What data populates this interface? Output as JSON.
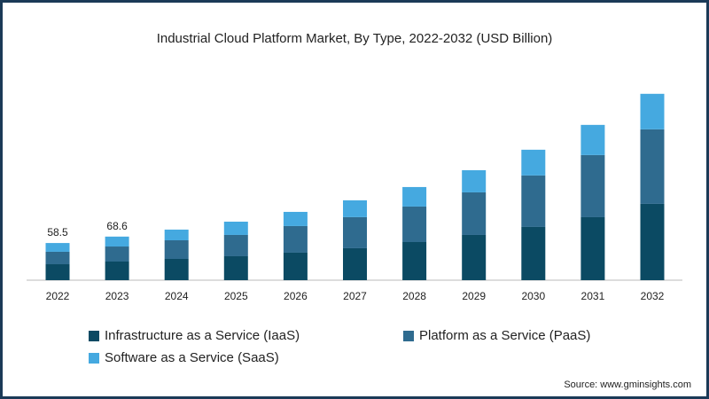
{
  "chart_data": {
    "type": "stacked_bar",
    "title": "Industrial Cloud Platform Market, By Type, 2022-2032 (USD Billion)",
    "categories": [
      "2022",
      "2023",
      "2024",
      "2025",
      "2026",
      "2027",
      "2028",
      "2029",
      "2030",
      "2031",
      "2032"
    ],
    "series": [
      {
        "name": "Infrastructure as a Service (IaaS)",
        "color": "#0b4a63",
        "values": [
          25.1,
          29.3,
          33.5,
          37.7,
          43.3,
          50.3,
          60.0,
          71.2,
          83.8,
          99.1,
          120.1
        ]
      },
      {
        "name": "Platform as a Service (PaaS)",
        "color": "#2f6b8f",
        "values": [
          19.6,
          23.7,
          29.3,
          33.5,
          41.9,
          48.9,
          55.9,
          67.0,
          81.0,
          97.8,
          117.3
        ]
      },
      {
        "name": "Software as a Service (SaaS)",
        "color": "#45a9e0",
        "values": [
          13.8,
          15.6,
          16.8,
          20.9,
          22.3,
          26.5,
          30.7,
          34.9,
          40.5,
          47.5,
          55.9
        ]
      }
    ],
    "totals": [
      58.5,
      68.6,
      null,
      null,
      null,
      null,
      null,
      null,
      null,
      null,
      null
    ],
    "ylim": [
      0,
      300
    ],
    "source": "Source: www.gminsights.com"
  }
}
